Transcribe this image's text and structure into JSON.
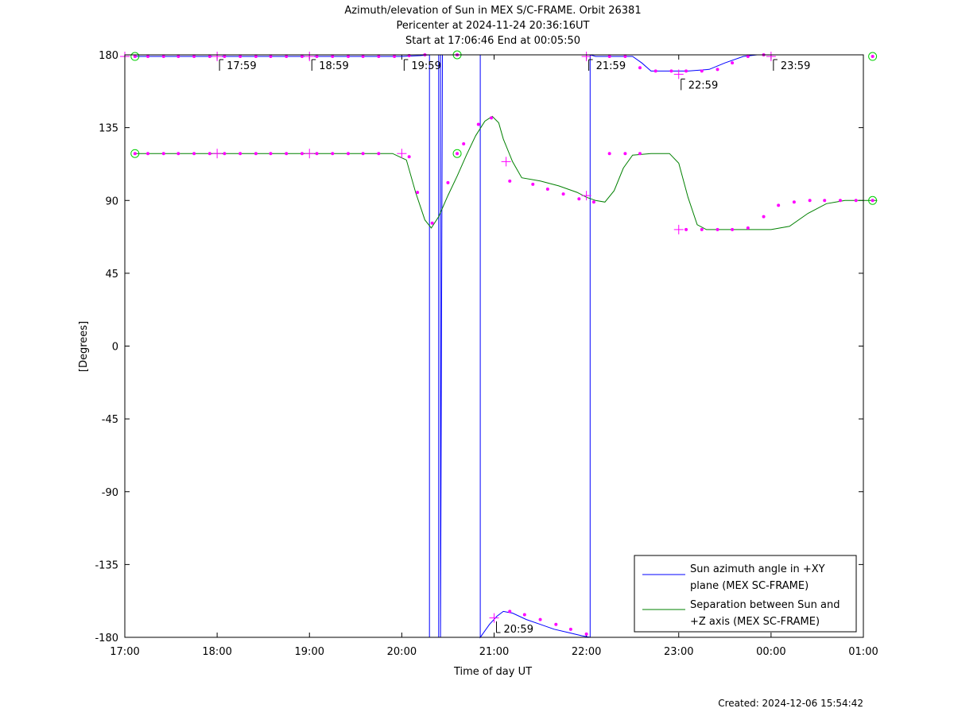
{
  "chart_data": {
    "type": "line",
    "title_lines": [
      "Azimuth/elevation of Sun in MEX S/C-FRAME.  Orbit 26381",
      "Pericenter at 2024-11-24 20:36:16UT",
      "Start at 17:06:46 End at 00:05:50"
    ],
    "xlabel": "Time of day UT",
    "ylabel": "[Degrees]",
    "x_unit": "hours since 17:00 UT",
    "xlim": [
      0,
      8
    ],
    "ylim": [
      -180,
      180
    ],
    "x_ticks": [
      0,
      1,
      2,
      3,
      4,
      5,
      6,
      7,
      8
    ],
    "x_tick_labels": [
      "17:00",
      "18:00",
      "19:00",
      "20:00",
      "21:00",
      "22:00",
      "23:00",
      "00:00",
      "01:00"
    ],
    "y_ticks": [
      180,
      135,
      90,
      45,
      0,
      -45,
      -90,
      -135,
      -180
    ],
    "y_tick_labels": [
      "180",
      "135",
      "90",
      "45",
      "0",
      "-45",
      "-90",
      "-135",
      "-180"
    ],
    "legend_position": "bottom-right",
    "series": [
      {
        "name_lines": [
          "Sun azimuth angle in +XY",
          "plane (MEX SC-FRAME)"
        ],
        "color": "#0000ff",
        "segments": [
          [
            [
              0.11,
              179
            ],
            [
              1.0,
              179
            ],
            [
              2.0,
              179
            ],
            [
              3.0,
              179
            ],
            [
              3.2,
              179.5
            ],
            [
              3.3,
              180
            ]
          ],
          [
            [
              3.3,
              -180
            ],
            [
              3.35,
              -180
            ],
            [
              3.4,
              -180
            ]
          ],
          [
            [
              3.4,
              180
            ],
            [
              3.42,
              180
            ]
          ],
          [
            [
              3.42,
              -180
            ]
          ],
          [
            [
              3.44,
              180
            ],
            [
              3.6,
              180
            ],
            [
              3.85,
              180
            ]
          ],
          [
            [
              3.85,
              -180
            ],
            [
              3.95,
              -172
            ],
            [
              4.03,
              -167
            ],
            [
              4.1,
              -164
            ],
            [
              4.2,
              -165
            ],
            [
              4.35,
              -169
            ],
            [
              4.5,
              -172
            ],
            [
              4.65,
              -175
            ],
            [
              4.8,
              -177
            ],
            [
              4.95,
              -179
            ],
            [
              5.04,
              -180
            ]
          ],
          [
            [
              5.04,
              180
            ],
            [
              5.1,
              179
            ],
            [
              5.3,
              179
            ],
            [
              5.5,
              179
            ],
            [
              5.6,
              175
            ],
            [
              5.7,
              170
            ],
            [
              5.9,
              170
            ],
            [
              6.1,
              170
            ],
            [
              6.33,
              171
            ],
            [
              6.5,
              175
            ],
            [
              6.7,
              179
            ],
            [
              6.85,
              180
            ],
            [
              7.0,
              180
            ],
            [
              7.1,
              180
            ]
          ]
        ]
      },
      {
        "name_lines": [
          "Separation between Sun and",
          "+Z axis (MEX SC-FRAME)"
        ],
        "color": "#008000",
        "segments": [
          [
            [
              0.11,
              119
            ],
            [
              0.5,
              119
            ],
            [
              1.0,
              119
            ],
            [
              2.0,
              119
            ],
            [
              2.9,
              119
            ],
            [
              3.05,
              115
            ],
            [
              3.15,
              95
            ],
            [
              3.25,
              78
            ],
            [
              3.32,
              73
            ],
            [
              3.4,
              80
            ],
            [
              3.5,
              93
            ],
            [
              3.6,
              105
            ],
            [
              3.7,
              118
            ],
            [
              3.8,
              130
            ],
            [
              3.9,
              139
            ],
            [
              3.98,
              142
            ],
            [
              4.05,
              138
            ],
            [
              4.1,
              128
            ],
            [
              4.2,
              114
            ],
            [
              4.3,
              104
            ],
            [
              4.5,
              102
            ],
            [
              4.7,
              99
            ],
            [
              4.9,
              95
            ],
            [
              5.0,
              92
            ],
            [
              5.1,
              90
            ],
            [
              5.2,
              89
            ],
            [
              5.3,
              96
            ],
            [
              5.4,
              110
            ],
            [
              5.5,
              118
            ],
            [
              5.7,
              119
            ],
            [
              5.9,
              119
            ],
            [
              6.0,
              113
            ],
            [
              6.1,
              92
            ],
            [
              6.2,
              75
            ],
            [
              6.3,
              72
            ],
            [
              6.5,
              72
            ],
            [
              6.8,
              72
            ],
            [
              7.0,
              72
            ],
            [
              7.2,
              74
            ],
            [
              7.4,
              82
            ],
            [
              7.6,
              88
            ],
            [
              7.8,
              90
            ],
            [
              8.0,
              90
            ],
            [
              8.15,
              90
            ]
          ]
        ]
      }
    ],
    "markers": {
      "color": "#ff00ff",
      "dots": [
        [
          0.25,
          179
        ],
        [
          0.42,
          179
        ],
        [
          0.58,
          179
        ],
        [
          0.75,
          179
        ],
        [
          0.92,
          179
        ],
        [
          1.08,
          179
        ],
        [
          1.25,
          179
        ],
        [
          1.42,
          179
        ],
        [
          1.58,
          179
        ],
        [
          1.75,
          179
        ],
        [
          1.92,
          179
        ],
        [
          2.08,
          179
        ],
        [
          2.25,
          179
        ],
        [
          2.42,
          179
        ],
        [
          2.58,
          179
        ],
        [
          2.75,
          179
        ],
        [
          2.92,
          179
        ],
        [
          3.08,
          179.5
        ],
        [
          3.25,
          180
        ],
        [
          0.25,
          119
        ],
        [
          0.42,
          119
        ],
        [
          0.58,
          119
        ],
        [
          0.75,
          119
        ],
        [
          0.92,
          119
        ],
        [
          1.08,
          119
        ],
        [
          1.25,
          119
        ],
        [
          1.42,
          119
        ],
        [
          1.58,
          119
        ],
        [
          1.75,
          119
        ],
        [
          1.92,
          119
        ],
        [
          2.08,
          119
        ],
        [
          2.25,
          119
        ],
        [
          2.42,
          119
        ],
        [
          2.58,
          119
        ],
        [
          2.75,
          119
        ],
        [
          3.08,
          117
        ],
        [
          3.17,
          95
        ],
        [
          3.33,
          76
        ],
        [
          3.5,
          101
        ],
        [
          3.67,
          125
        ],
        [
          3.83,
          137
        ],
        [
          3.97,
          141
        ],
        [
          4.17,
          102
        ],
        [
          4.42,
          100
        ],
        [
          4.58,
          97
        ],
        [
          4.75,
          94
        ],
        [
          4.92,
          91
        ],
        [
          5.08,
          89
        ],
        [
          4.17,
          -164
        ],
        [
          4.33,
          -166
        ],
        [
          4.5,
          -169
        ],
        [
          4.67,
          -172
        ],
        [
          4.83,
          -175
        ],
        [
          5.0,
          -178
        ],
        [
          5.25,
          179
        ],
        [
          5.42,
          179
        ],
        [
          5.58,
          172
        ],
        [
          5.75,
          170
        ],
        [
          5.92,
          170
        ],
        [
          6.08,
          170
        ],
        [
          6.25,
          170
        ],
        [
          6.42,
          171
        ],
        [
          6.58,
          175
        ],
        [
          6.75,
          179
        ],
        [
          6.92,
          180
        ],
        [
          5.25,
          119
        ],
        [
          5.42,
          119
        ],
        [
          5.58,
          119
        ],
        [
          6.08,
          72
        ],
        [
          6.25,
          72
        ],
        [
          6.42,
          72
        ],
        [
          6.58,
          72
        ],
        [
          6.75,
          73
        ],
        [
          6.92,
          80
        ],
        [
          7.08,
          87
        ],
        [
          7.25,
          89
        ],
        [
          7.42,
          90
        ],
        [
          7.58,
          90
        ],
        [
          7.75,
          90
        ],
        [
          7.92,
          90
        ]
      ],
      "crosses": [
        [
          0.0,
          179
        ],
        [
          1.0,
          179
        ],
        [
          2.0,
          179
        ],
        [
          1.0,
          119
        ],
        [
          2.0,
          119
        ],
        [
          3.0,
          119
        ],
        [
          4.13,
          114
        ],
        [
          5.0,
          93
        ],
        [
          6.0,
          72
        ],
        [
          4.0,
          -168
        ],
        [
          5.0,
          179
        ],
        [
          6.0,
          168
        ],
        [
          7.0,
          179
        ]
      ],
      "circles": [
        [
          0.11,
          179
        ],
        [
          0.11,
          119
        ],
        [
          3.6,
          180
        ],
        [
          3.6,
          119
        ],
        [
          8.1,
          179
        ],
        [
          8.1,
          90
        ]
      ]
    },
    "annotations": [
      {
        "text": "17:59",
        "x": 1.0,
        "y": 180
      },
      {
        "text": "18:59",
        "x": 2.0,
        "y": 180
      },
      {
        "text": "19:59",
        "x": 3.0,
        "y": 180
      },
      {
        "text": "20:59",
        "x": 4.0,
        "y": -180
      },
      {
        "text": "21:59",
        "x": 5.0,
        "y": 180
      },
      {
        "text": "22:59",
        "x": 6.0,
        "y": 168
      },
      {
        "text": "23:59",
        "x": 7.0,
        "y": 180
      }
    ]
  },
  "footer": {
    "created": "Created: 2024-12-06 15:54:42"
  }
}
